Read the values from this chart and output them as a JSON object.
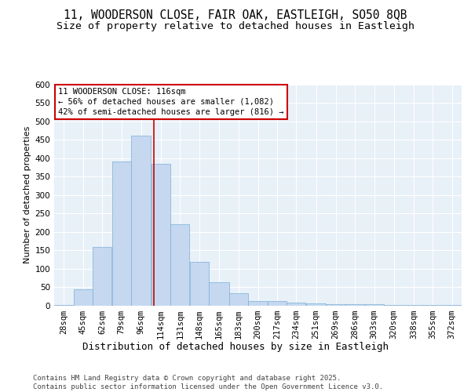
{
  "title1": "11, WOODERSON CLOSE, FAIR OAK, EASTLEIGH, SO50 8QB",
  "title2": "Size of property relative to detached houses in Eastleigh",
  "xlabel": "Distribution of detached houses by size in Eastleigh",
  "ylabel": "Number of detached properties",
  "categories": [
    "28sqm",
    "45sqm",
    "62sqm",
    "79sqm",
    "96sqm",
    "114sqm",
    "131sqm",
    "148sqm",
    "165sqm",
    "183sqm",
    "200sqm",
    "217sqm",
    "234sqm",
    "251sqm",
    "269sqm",
    "286sqm",
    "303sqm",
    "320sqm",
    "338sqm",
    "355sqm",
    "372sqm"
  ],
  "bar_heights": [
    2,
    45,
    160,
    390,
    460,
    385,
    220,
    120,
    63,
    33,
    13,
    13,
    8,
    6,
    5,
    4,
    4,
    3,
    3,
    2,
    2
  ],
  "bar_color": "#c5d8f0",
  "bar_edge_color": "#7aafd4",
  "background_color": "#e8f0f8",
  "grid_color": "#ffffff",
  "annotation_box_color": "#ffffff",
  "annotation_border_color": "#cc0000",
  "annotation_text": "11 WOODERSON CLOSE: 116sqm\n← 56% of detached houses are smaller (1,082)\n42% of semi-detached houses are larger (816) →",
  "vline_color": "#cc0000",
  "vline_x": 116,
  "bin_edges": [
    28,
    45,
    62,
    79,
    96,
    114,
    131,
    148,
    165,
    183,
    200,
    217,
    234,
    251,
    269,
    286,
    303,
    320,
    338,
    355,
    372,
    389
  ],
  "ylim": [
    0,
    600
  ],
  "yticks": [
    0,
    50,
    100,
    150,
    200,
    250,
    300,
    350,
    400,
    450,
    500,
    550,
    600
  ],
  "footer": "Contains HM Land Registry data © Crown copyright and database right 2025.\nContains public sector information licensed under the Open Government Licence v3.0.",
  "title1_fontsize": 10.5,
  "title2_fontsize": 9.5,
  "xlabel_fontsize": 9,
  "ylabel_fontsize": 8,
  "tick_fontsize": 7.5,
  "annotation_fontsize": 7.5,
  "footer_fontsize": 6.5
}
